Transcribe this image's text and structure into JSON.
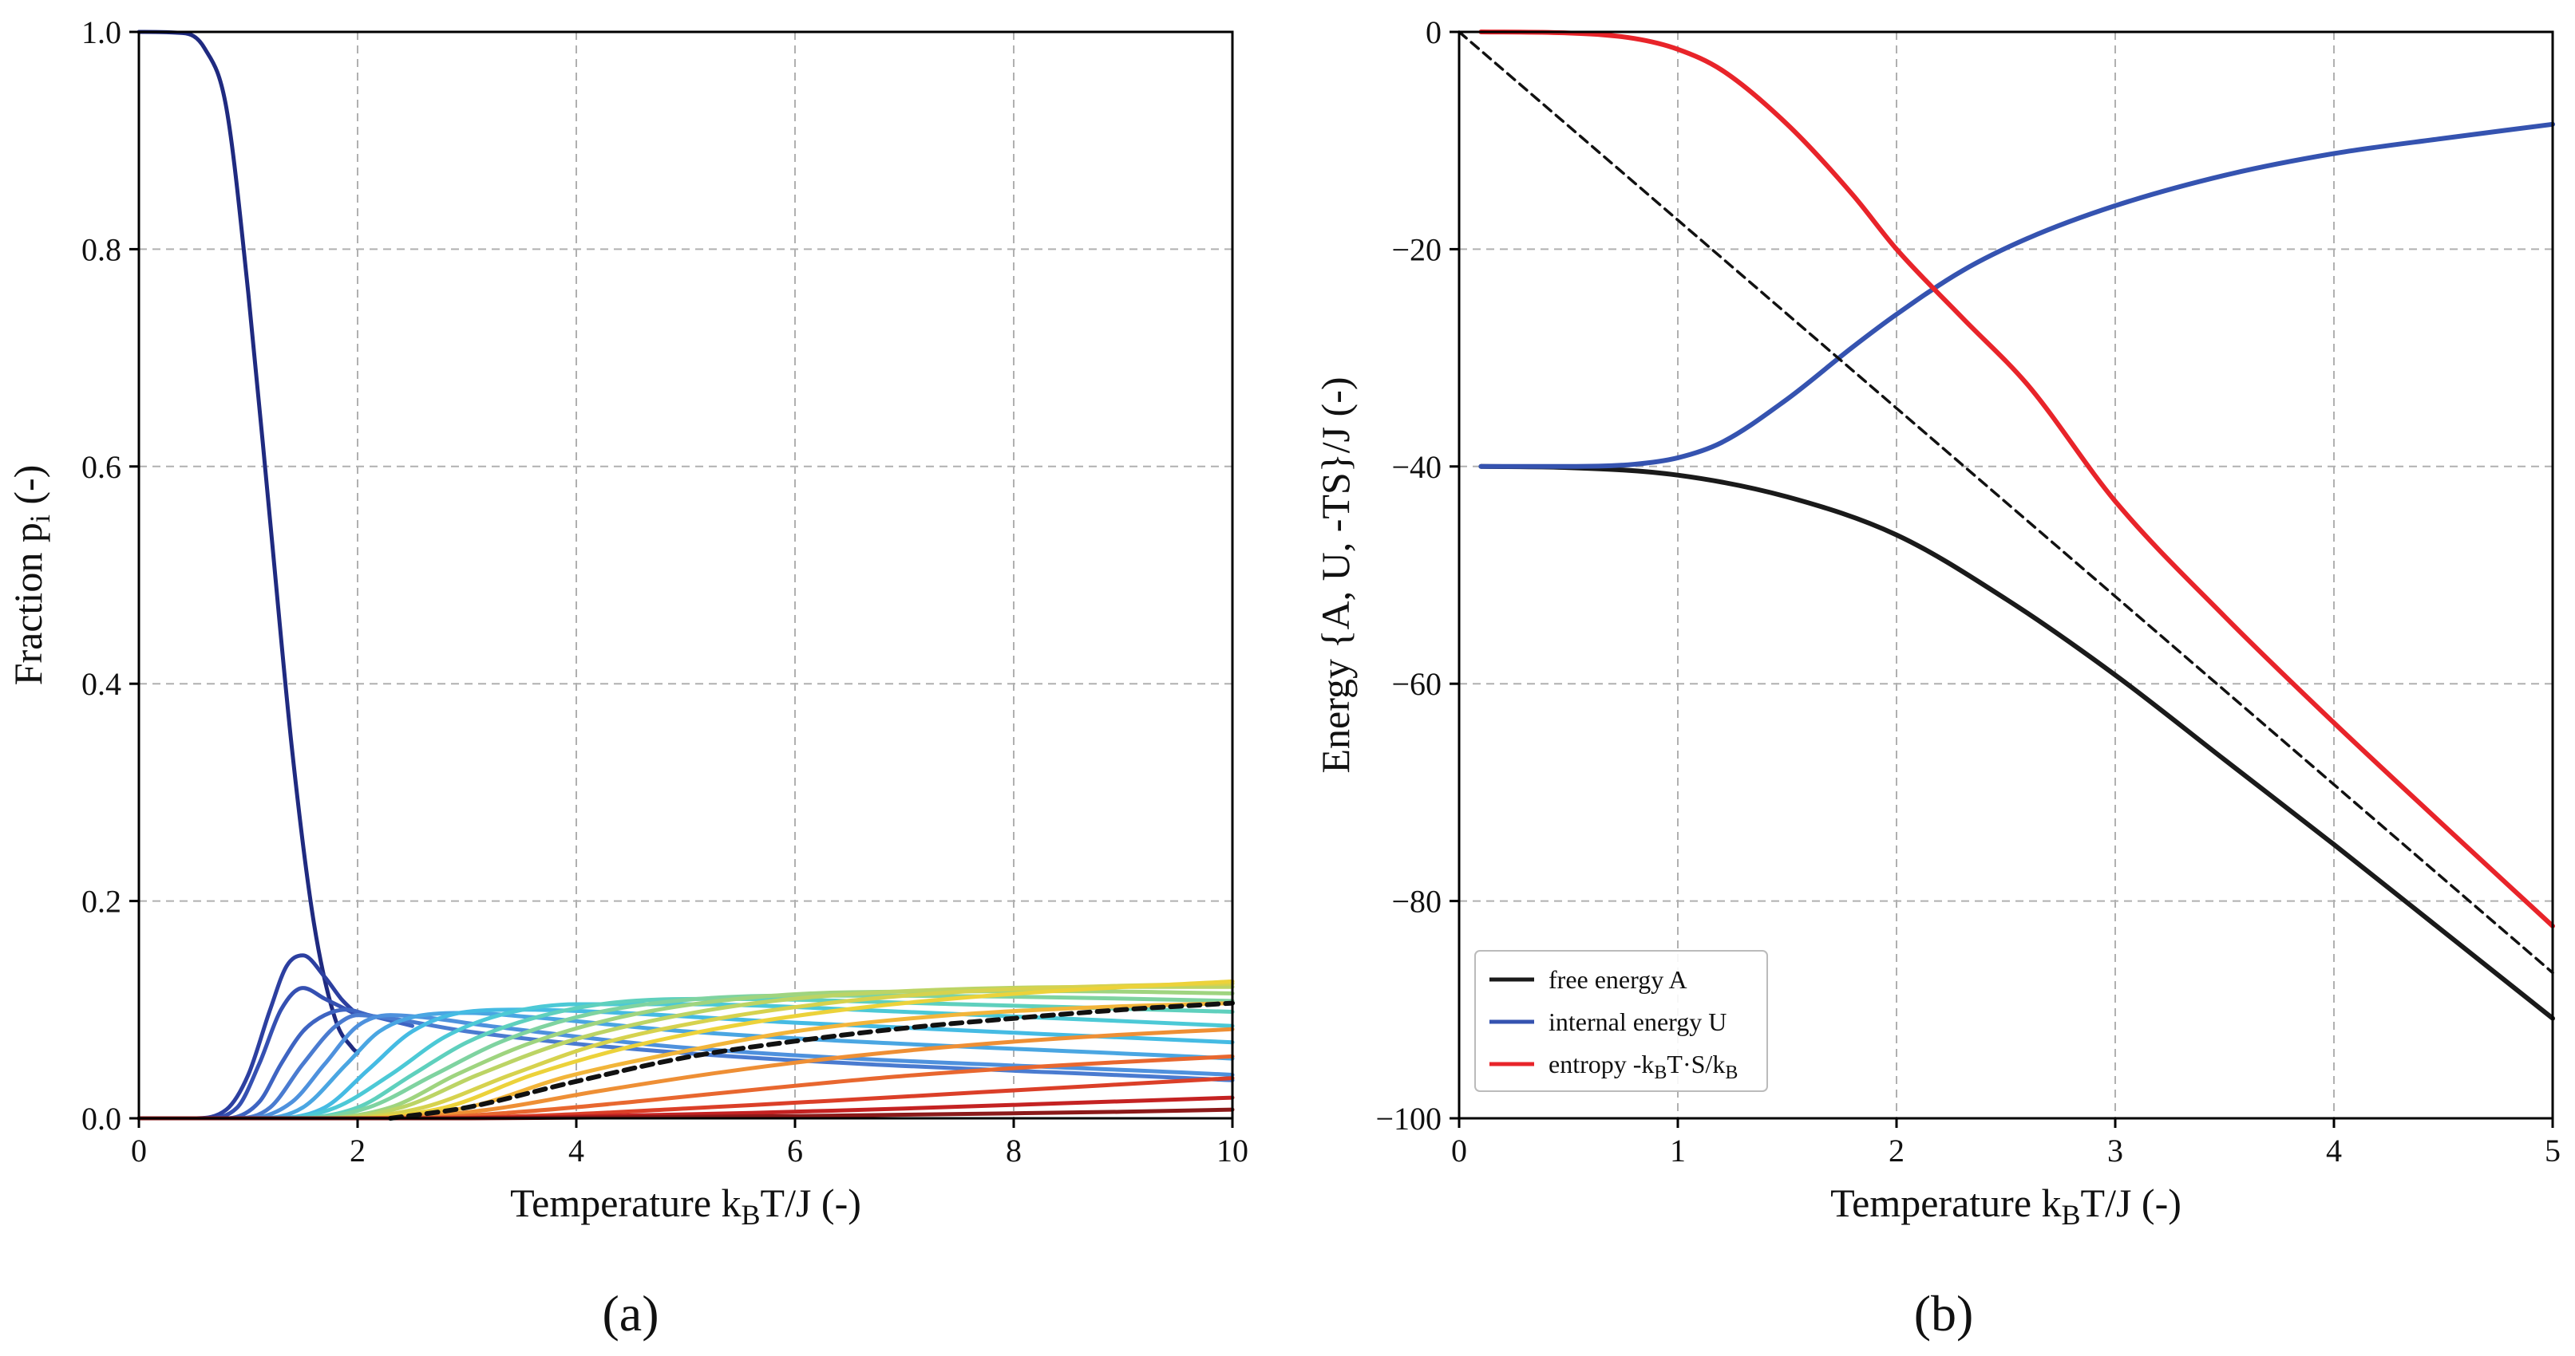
{
  "figure": {
    "panels": [
      {
        "id": "a",
        "caption": "(a)",
        "chart_data": {
          "type": "line",
          "title": "",
          "xlabel_parts": [
            "Temperature k",
            "B",
            "T/J (-)"
          ],
          "ylabel_parts": [
            "Fraction p",
            "i",
            " (-)"
          ],
          "xlim": [
            0,
            10
          ],
          "ylim": [
            0,
            1.0
          ],
          "xticks": [
            0,
            2,
            4,
            6,
            8,
            10
          ],
          "xtick_labels": [
            "0",
            "2",
            "4",
            "6",
            "8",
            "10"
          ],
          "yticks": [
            0,
            0.2,
            0.4,
            0.6,
            0.8,
            1.0
          ],
          "ytick_labels": [
            "0.0",
            "0.2",
            "0.4",
            "0.6",
            "0.8",
            "1.0"
          ],
          "grid": true,
          "series_description": "Fractions p_i of energy levels i = 0..20 versus temperature, colored dark blue (ground state) through cyan/green/yellow to dark red (highest level); one level highlighted with a black dashed overlay.",
          "series": [
            {
              "name": "p0",
              "color": "#1f2a80",
              "x": [
                0,
                0.4,
                0.6,
                0.8,
                1.0,
                1.2,
                1.4,
                1.6,
                1.8,
                1.95,
                2.0
              ],
              "y": [
                1.0,
                0.999,
                0.985,
                0.93,
                0.76,
                0.55,
                0.34,
                0.18,
                0.09,
                0.065,
                0.06
              ]
            },
            {
              "name": "p1",
              "color": "#2c3fa0",
              "x": [
                0,
                0.5,
                0.8,
                1.0,
                1.2,
                1.35,
                1.5,
                1.7,
                1.85,
                2.0
              ],
              "y": [
                0,
                0,
                0.008,
                0.04,
                0.1,
                0.14,
                0.15,
                0.13,
                0.11,
                0.095
              ]
            },
            {
              "name": "p2",
              "color": "#3550b2",
              "x": [
                0,
                0.6,
                0.9,
                1.1,
                1.3,
                1.5,
                1.7,
                1.9,
                2.0
              ],
              "y": [
                0,
                0,
                0.01,
                0.05,
                0.1,
                0.12,
                0.11,
                0.1,
                0.095
              ]
            },
            {
              "name": "p3",
              "color": "#3e64c2",
              "x": [
                0,
                0.8,
                1.1,
                1.3,
                1.5,
                1.7,
                1.9,
                2.1,
                2.5
              ],
              "y": [
                0,
                0,
                0.015,
                0.05,
                0.08,
                0.095,
                0.1,
                0.095,
                0.085
              ]
            },
            {
              "name": "p4",
              "color": "#4a7bd0",
              "x": [
                0,
                0.9,
                1.2,
                1.5,
                1.8,
                2.0,
                2.3,
                3.0,
                5.0,
                10.0
              ],
              "y": [
                0,
                0,
                0.01,
                0.05,
                0.085,
                0.095,
                0.092,
                0.08,
                0.06,
                0.035
              ]
            },
            {
              "name": "p5",
              "color": "#4e91dd",
              "x": [
                0,
                1.0,
                1.4,
                1.7,
                2.0,
                2.3,
                2.6,
                3.2,
                5.0,
                10.0
              ],
              "y": [
                0,
                0,
                0.015,
                0.05,
                0.085,
                0.095,
                0.093,
                0.085,
                0.065,
                0.04
              ]
            },
            {
              "name": "p6",
              "color": "#4aa6e2",
              "x": [
                0,
                1.1,
                1.5,
                1.9,
                2.2,
                2.6,
                3.0,
                3.6,
                5.0,
                10.0
              ],
              "y": [
                0,
                0,
                0.01,
                0.05,
                0.08,
                0.095,
                0.097,
                0.093,
                0.08,
                0.055
              ]
            },
            {
              "name": "p7",
              "color": "#45bbe3",
              "x": [
                0,
                1.2,
                1.7,
                2.1,
                2.5,
                3.0,
                3.5,
                4.2,
                6.0,
                10.0
              ],
              "y": [
                0,
                0,
                0.01,
                0.045,
                0.08,
                0.098,
                0.1,
                0.098,
                0.088,
                0.07
              ]
            },
            {
              "name": "p8",
              "color": "#4cc9d6",
              "x": [
                0,
                1.3,
                1.8,
                2.3,
                2.8,
                3.3,
                4.0,
                5.0,
                7.0,
                10.0
              ],
              "y": [
                0,
                0,
                0.01,
                0.04,
                0.075,
                0.095,
                0.105,
                0.105,
                0.098,
                0.085
              ]
            },
            {
              "name": "p9",
              "color": "#5fd0bd",
              "x": [
                0,
                1.4,
                2.0,
                2.5,
                3.0,
                3.6,
                4.3,
                5.3,
                7.5,
                10.0
              ],
              "y": [
                0,
                0,
                0.01,
                0.04,
                0.07,
                0.092,
                0.106,
                0.11,
                0.105,
                0.098
              ]
            },
            {
              "name": "p10",
              "color": "#7fd3a0",
              "x": [
                0,
                1.5,
                2.1,
                2.7,
                3.3,
                4.0,
                4.8,
                6.0,
                8.0,
                10.0
              ],
              "y": [
                0,
                0,
                0.01,
                0.04,
                0.07,
                0.093,
                0.107,
                0.113,
                0.112,
                0.108
              ]
            },
            {
              "name": "p11",
              "color": "#9fd47f",
              "x": [
                0,
                1.6,
                2.3,
                2.9,
                3.6,
                4.4,
                5.3,
                6.5,
                8.5,
                10.0
              ],
              "y": [
                0,
                0,
                0.01,
                0.04,
                0.07,
                0.093,
                0.108,
                0.116,
                0.117,
                0.115
              ]
            },
            {
              "name": "p12",
              "color": "#bcd465",
              "x": [
                0,
                1.7,
                2.4,
                3.1,
                3.9,
                4.8,
                5.8,
                7.0,
                9.0,
                10.0
              ],
              "y": [
                0,
                0,
                0.01,
                0.04,
                0.07,
                0.092,
                0.108,
                0.117,
                0.121,
                0.121
              ]
            },
            {
              "name": "p13",
              "color": "#d6d24e",
              "x": [
                0,
                1.8,
                2.6,
                3.4,
                4.2,
                5.2,
                6.3,
                7.6,
                9.0,
                10.0
              ],
              "y": [
                0,
                0,
                0.01,
                0.04,
                0.068,
                0.09,
                0.106,
                0.117,
                0.122,
                0.124
              ]
            },
            {
              "name": "p14",
              "color": "#ecd23a",
              "x": [
                0,
                1.9,
                2.8,
                3.6,
                4.5,
                5.6,
                6.8,
                8.2,
                10.0
              ],
              "y": [
                0,
                0,
                0.01,
                0.04,
                0.066,
                0.088,
                0.104,
                0.116,
                0.126
              ]
            },
            {
              "name": "p15",
              "color": "#f2b53a",
              "x": [
                0,
                2.0,
                3.0,
                3.9,
                4.9,
                6.0,
                7.3,
                8.7,
                10.0
              ],
              "y": [
                0,
                0,
                0.01,
                0.038,
                0.06,
                0.08,
                0.094,
                0.102,
                0.106
              ]
            },
            {
              "name": "p16",
              "color": "#ee8f35",
              "x": [
                0,
                2.2,
                3.2,
                4.2,
                5.3,
                6.5,
                7.8,
                9.0,
                10.0
              ],
              "y": [
                0,
                0,
                0.008,
                0.025,
                0.042,
                0.057,
                0.069,
                0.077,
                0.082
              ]
            },
            {
              "name": "p17",
              "color": "#e8672f",
              "x": [
                0,
                2.4,
                3.5,
                4.6,
                5.8,
                7.0,
                8.3,
                10.0
              ],
              "y": [
                0,
                0,
                0.006,
                0.016,
                0.028,
                0.039,
                0.048,
                0.057
              ]
            },
            {
              "name": "p18",
              "color": "#db3f28",
              "x": [
                0,
                2.6,
                3.8,
                5.0,
                6.3,
                7.7,
                10.0
              ],
              "y": [
                0,
                0,
                0.003,
                0.009,
                0.016,
                0.024,
                0.037
              ]
            },
            {
              "name": "p19",
              "color": "#c42222",
              "x": [
                0,
                2.8,
                4.2,
                5.6,
                7.0,
                8.5,
                10.0
              ],
              "y": [
                0,
                0,
                0.002,
                0.005,
                0.009,
                0.014,
                0.019
              ]
            },
            {
              "name": "p20",
              "color": "#8b1a1a",
              "x": [
                0,
                3.0,
                4.5,
                6.0,
                7.5,
                9.0,
                10.0
              ],
              "y": [
                0,
                0,
                0.001,
                0.002,
                0.004,
                0.006,
                0.008
              ]
            },
            {
              "name": "highlighted level",
              "color": "#111111",
              "dashed": true,
              "x": [
                2.3,
                3.0,
                4.0,
                5.0,
                6.0,
                7.0,
                8.0,
                9.0,
                10.0
              ],
              "y": [
                0,
                0.01,
                0.034,
                0.056,
                0.071,
                0.083,
                0.092,
                0.1,
                0.106
              ]
            }
          ]
        }
      },
      {
        "id": "b",
        "caption": "(b)",
        "chart_data": {
          "type": "line",
          "title": "",
          "xlabel_parts": [
            "Temperature k",
            "B",
            "T/J (-)"
          ],
          "ylabel": "Energy {A, U, -TS}/J (-)",
          "xlim": [
            0,
            5
          ],
          "ylim": [
            -100,
            0
          ],
          "xticks": [
            0,
            1,
            2,
            3,
            4,
            5
          ],
          "xtick_labels": [
            "0",
            "1",
            "2",
            "3",
            "4",
            "5"
          ],
          "yticks": [
            0,
            -20,
            -40,
            -60,
            -80,
            -100
          ],
          "ytick_labels": [
            "0",
            "−20",
            "−40",
            "−60",
            "−80",
            "−100"
          ],
          "grid": true,
          "legend_location": "bottom-left",
          "legend": [
            {
              "series": "A",
              "label": "free energy A",
              "color": "#1a1a1a"
            },
            {
              "series": "U",
              "label": "internal energy U",
              "color": "#3553b0"
            },
            {
              "series": "TS",
              "label_parts": [
                "entropy -k",
                "B",
                "T·S/k",
                "B"
              ],
              "color": "#e8242a"
            }
          ],
          "series": [
            {
              "name": "A",
              "color": "#1a1a1a",
              "x": [
                0.1,
                0.5,
                1.0,
                1.5,
                2.0,
                2.5,
                3.0,
                3.5,
                4.0,
                4.5,
                5.0
              ],
              "y": [
                -40.0,
                -40.1,
                -40.8,
                -42.8,
                -46.3,
                -52.2,
                -59.2,
                -67.0,
                -74.8,
                -82.8,
                -90.8
              ]
            },
            {
              "name": "U",
              "color": "#3553b0",
              "x": [
                0.1,
                0.5,
                0.8,
                1.0,
                1.2,
                1.5,
                1.8,
                2.0,
                2.3,
                2.6,
                3.0,
                3.5,
                4.0,
                4.5,
                5.0
              ],
              "y": [
                -40.0,
                -40.0,
                -39.8,
                -39.2,
                -37.8,
                -33.8,
                -29.0,
                -26.0,
                -22.0,
                -19.0,
                -16.0,
                -13.2,
                -11.2,
                -9.8,
                -8.5
              ]
            },
            {
              "name": "TS",
              "color": "#e8242a",
              "x": [
                0.1,
                0.5,
                0.8,
                1.0,
                1.2,
                1.5,
                1.8,
                2.0,
                2.3,
                2.6,
                3.0,
                3.5,
                4.0,
                4.5,
                5.0
              ],
              "y": [
                0.0,
                -0.1,
                -0.6,
                -1.6,
                -3.5,
                -8.5,
                -15.0,
                -20.0,
                -26.3,
                -32.5,
                -43.2,
                -53.8,
                -63.6,
                -73.0,
                -82.3
              ]
            },
            {
              "name": "-T reference",
              "color": "#111111",
              "dashed": true,
              "x": [
                0,
                5
              ],
              "y": [
                0,
                -86.6
              ]
            }
          ]
        }
      }
    ]
  }
}
